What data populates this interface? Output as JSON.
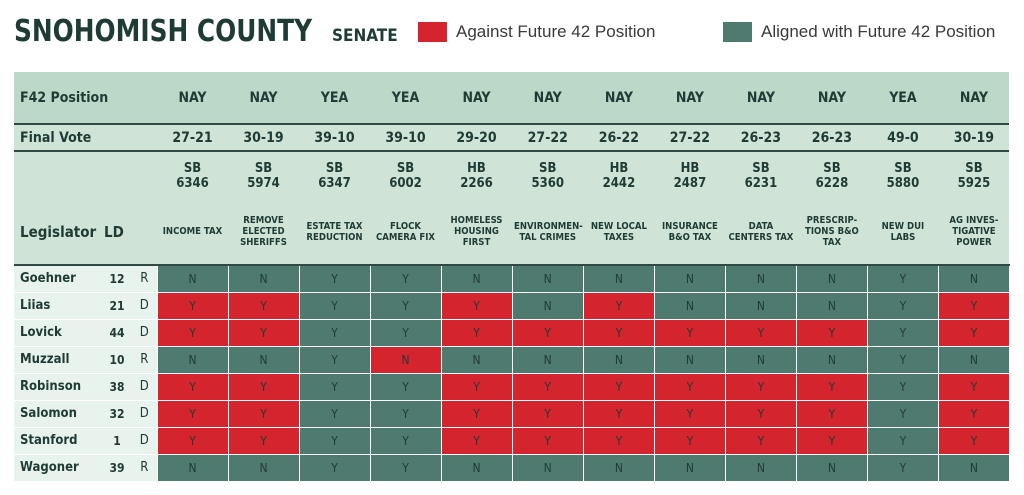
{
  "title": {
    "main": "SNOHOMISH COUNTY",
    "sub": "SENATE"
  },
  "legend": [
    {
      "label": "Against Future 42 Position",
      "color": "#d4242d"
    },
    {
      "label": "Aligned with Future 42 Position",
      "color": "#4f7a70"
    }
  ],
  "header": {
    "position_label": "F42 Position",
    "final_vote_label": "Final Vote",
    "legislator_label": "Legislator",
    "ld_label": "LD"
  },
  "bills": [
    {
      "position": "NAY",
      "final_vote": "27-21",
      "type": "SB",
      "number": "6346",
      "subject": "INCOME TAX"
    },
    {
      "position": "NAY",
      "final_vote": "30-19",
      "type": "SB",
      "number": "5974",
      "subject": "REMOVE ELECTED SHERIFFS"
    },
    {
      "position": "YEA",
      "final_vote": "39-10",
      "type": "SB",
      "number": "6347",
      "subject": "ESTATE TAX REDUCTION"
    },
    {
      "position": "YEA",
      "final_vote": "39-10",
      "type": "SB",
      "number": "6002",
      "subject": "FLOCK CAMERA FIX"
    },
    {
      "position": "NAY",
      "final_vote": "29-20",
      "type": "HB",
      "number": "2266",
      "subject": "HOMELESS HOUSING FIRST"
    },
    {
      "position": "NAY",
      "final_vote": "27-22",
      "type": "SB",
      "number": "5360",
      "subject": "ENVIRONMEN-TAL CRIMES"
    },
    {
      "position": "NAY",
      "final_vote": "26-22",
      "type": "HB",
      "number": "2442",
      "subject": "NEW LOCAL TAXES"
    },
    {
      "position": "NAY",
      "final_vote": "27-22",
      "type": "HB",
      "number": "2487",
      "subject": "INSURANCE B&O TAX"
    },
    {
      "position": "NAY",
      "final_vote": "26-23",
      "type": "SB",
      "number": "6231",
      "subject": "DATA CENTERS TAX"
    },
    {
      "position": "NAY",
      "final_vote": "26-23",
      "type": "SB",
      "number": "6228",
      "subject": "PRESCRIP-TIONS B&O TAX"
    },
    {
      "position": "YEA",
      "final_vote": "49-0",
      "type": "SB",
      "number": "5880",
      "subject": "NEW DUI LABS"
    },
    {
      "position": "NAY",
      "final_vote": "30-19",
      "type": "SB",
      "number": "5925",
      "subject": "AG INVES-TIGATIVE POWER"
    }
  ],
  "legislators": [
    {
      "name": "Goehner",
      "ld": "12",
      "party": "R",
      "votes": [
        "N",
        "N",
        "Y",
        "Y",
        "N",
        "N",
        "N",
        "N",
        "N",
        "N",
        "Y",
        "N"
      ]
    },
    {
      "name": "Liias",
      "ld": "21",
      "party": "D",
      "votes": [
        "Y",
        "Y",
        "Y",
        "Y",
        "Y",
        "N",
        "Y",
        "N",
        "N",
        "N",
        "Y",
        "Y"
      ]
    },
    {
      "name": "Lovick",
      "ld": "44",
      "party": "D",
      "votes": [
        "Y",
        "Y",
        "Y",
        "Y",
        "Y",
        "Y",
        "Y",
        "Y",
        "Y",
        "Y",
        "Y",
        "Y"
      ]
    },
    {
      "name": "Muzzall",
      "ld": "10",
      "party": "R",
      "votes": [
        "N",
        "N",
        "Y",
        "N",
        "N",
        "N",
        "N",
        "N",
        "N",
        "N",
        "Y",
        "N"
      ]
    },
    {
      "name": "Robinson",
      "ld": "38",
      "party": "D",
      "votes": [
        "Y",
        "Y",
        "Y",
        "Y",
        "Y",
        "Y",
        "Y",
        "Y",
        "Y",
        "Y",
        "Y",
        "Y"
      ]
    },
    {
      "name": "Salomon",
      "ld": "32",
      "party": "D",
      "votes": [
        "Y",
        "Y",
        "Y",
        "Y",
        "Y",
        "Y",
        "Y",
        "Y",
        "Y",
        "Y",
        "Y",
        "Y"
      ]
    },
    {
      "name": "Stanford",
      "ld": "1",
      "party": "D",
      "votes": [
        "Y",
        "Y",
        "Y",
        "Y",
        "Y",
        "Y",
        "Y",
        "Y",
        "Y",
        "Y",
        "Y",
        "Y"
      ]
    },
    {
      "name": "Wagoner",
      "ld": "39",
      "party": "R",
      "votes": [
        "N",
        "N",
        "Y",
        "Y",
        "N",
        "N",
        "N",
        "N",
        "N",
        "N",
        "Y",
        "N"
      ]
    }
  ]
}
